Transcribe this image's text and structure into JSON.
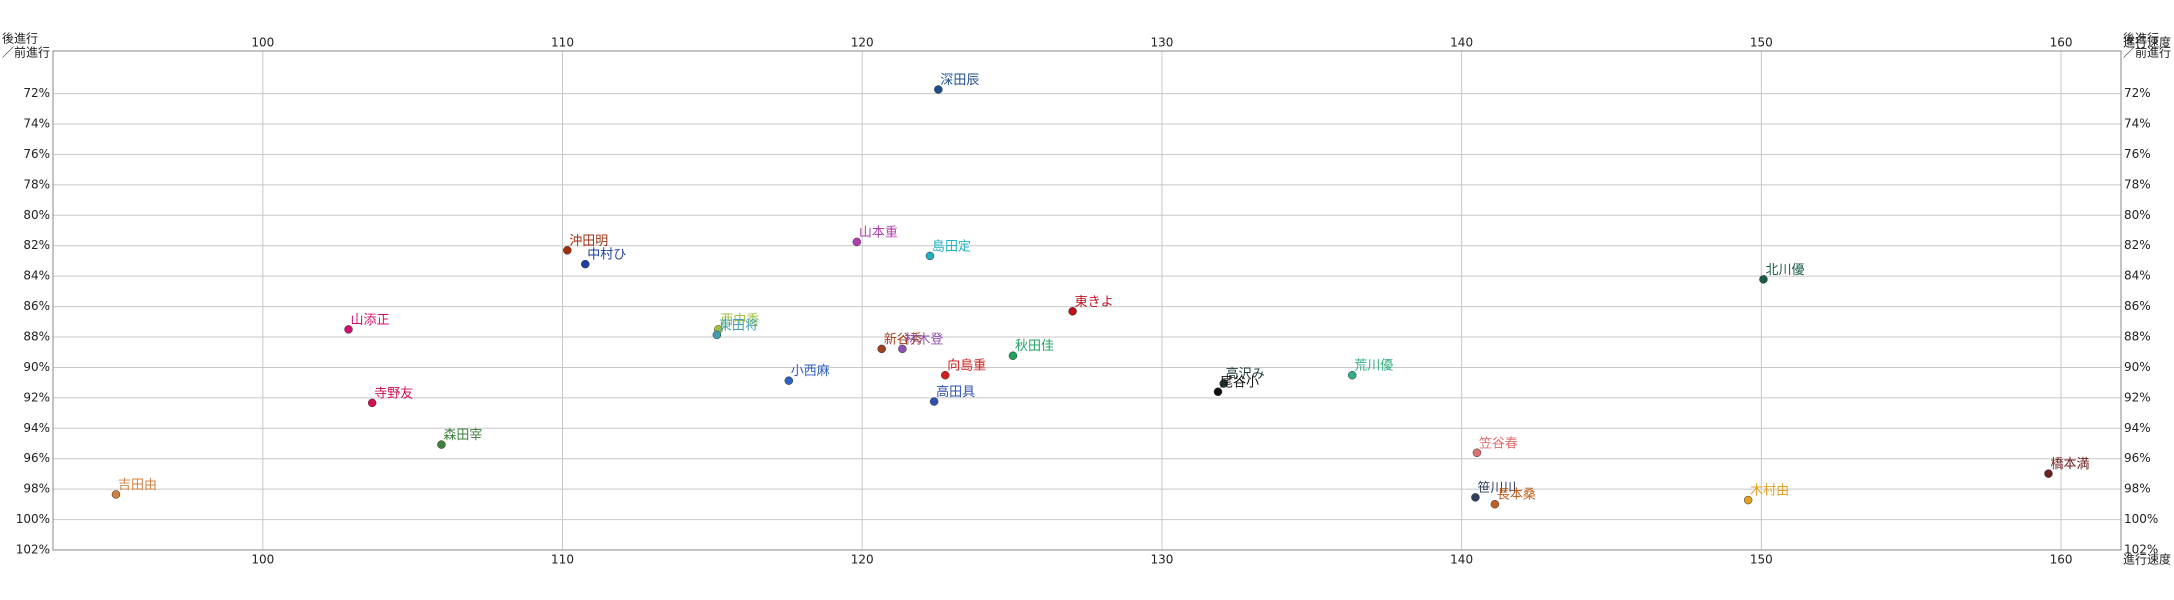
{
  "chart_data": {
    "type": "scatter",
    "y_label": [
      "後進行",
      "／前進行"
    ],
    "x_label": "進行速度",
    "xlim": [
      93,
      162
    ],
    "ylim": [
      69.2,
      102
    ],
    "y_reversed": true,
    "grid": true,
    "xticks": [
      100,
      110,
      120,
      130,
      140,
      150,
      160
    ],
    "yticks": [
      {
        "value": 72,
        "label": "72%"
      },
      {
        "value": 74,
        "label": "74%"
      },
      {
        "value": 76,
        "label": "76%"
      },
      {
        "value": 78,
        "label": "78%"
      },
      {
        "value": 80,
        "label": "80%"
      },
      {
        "value": 82,
        "label": "82%"
      },
      {
        "value": 84,
        "label": "84%"
      },
      {
        "value": 86,
        "label": "86%"
      },
      {
        "value": 88,
        "label": "88%"
      },
      {
        "value": 90,
        "label": "90%"
      },
      {
        "value": 92,
        "label": "92%"
      },
      {
        "value": 94,
        "label": "94%"
      },
      {
        "value": 96,
        "label": "96%"
      },
      {
        "value": 98,
        "label": "98%"
      },
      {
        "value": 100,
        "label": "100%"
      },
      {
        "value": 102,
        "label": "102%"
      }
    ],
    "points": [
      {
        "name": "深田辰",
        "color": "#1f4e8c",
        "x": 122.54,
        "y": 71.73
      },
      {
        "name": "沖田明",
        "color": "#a03010",
        "x": 110.16,
        "y": 82.3
      },
      {
        "name": "中村ひ",
        "color": "#1f3f9f",
        "x": 110.76,
        "y": 83.21
      },
      {
        "name": "山本重",
        "color": "#b040b0",
        "x": 119.82,
        "y": 81.75
      },
      {
        "name": "島田定",
        "color": "#20b0c0",
        "x": 122.26,
        "y": 82.67
      },
      {
        "name": "北川優",
        "color": "#1a5a4a",
        "x": 150.07,
        "y": 84.21
      },
      {
        "name": "東きよ",
        "color": "#c01020",
        "x": 127.02,
        "y": 86.31
      },
      {
        "name": "山添正",
        "color": "#d01070",
        "x": 102.86,
        "y": 87.5
      },
      {
        "name": "西中秀",
        "color": "#a0c040",
        "x": 115.2,
        "y": 87.5
      },
      {
        "name": "東田将",
        "color": "#40a0b0",
        "x": 115.15,
        "y": 87.86
      },
      {
        "name": "新谷秀",
        "color": "#a04020",
        "x": 120.65,
        "y": 88.78
      },
      {
        "name": "林木登",
        "color": "#9050b0",
        "x": 121.34,
        "y": 88.78
      },
      {
        "name": "秋田佳",
        "color": "#20a060",
        "x": 125.03,
        "y": 89.23
      },
      {
        "name": "向島重",
        "color": "#d02020",
        "x": 122.77,
        "y": 90.51
      },
      {
        "name": "小西麻",
        "color": "#3060c0",
        "x": 117.55,
        "y": 90.87
      },
      {
        "name": "荒川優",
        "color": "#30b080",
        "x": 136.35,
        "y": 90.51
      },
      {
        "name": "高沢み",
        "color": "#204040",
        "x": 132.06,
        "y": 91.06
      },
      {
        "name": "尾谷小",
        "color": "#111111",
        "x": 131.87,
        "y": 91.6
      },
      {
        "name": "高田具",
        "color": "#3050b0",
        "x": 122.4,
        "y": 92.24
      },
      {
        "name": "寺野友",
        "color": "#d01050",
        "x": 103.65,
        "y": 92.33
      },
      {
        "name": "森田宰",
        "color": "#408040",
        "x": 105.96,
        "y": 95.07
      },
      {
        "name": "笠谷春",
        "color": "#e07070",
        "x": 140.51,
        "y": 95.61
      },
      {
        "name": "橋本満",
        "color": "#702020",
        "x": 159.58,
        "y": 96.98
      },
      {
        "name": "吉田由",
        "color": "#d08040",
        "x": 95.1,
        "y": 98.35
      },
      {
        "name": "笹川川",
        "color": "#304060",
        "x": 140.46,
        "y": 98.54
      },
      {
        "name": "長本桑",
        "color": "#c06020",
        "x": 141.11,
        "y": 98.99
      },
      {
        "name": "木村由",
        "color": "#e0a020",
        "x": 149.56,
        "y": 98.72
      }
    ]
  }
}
